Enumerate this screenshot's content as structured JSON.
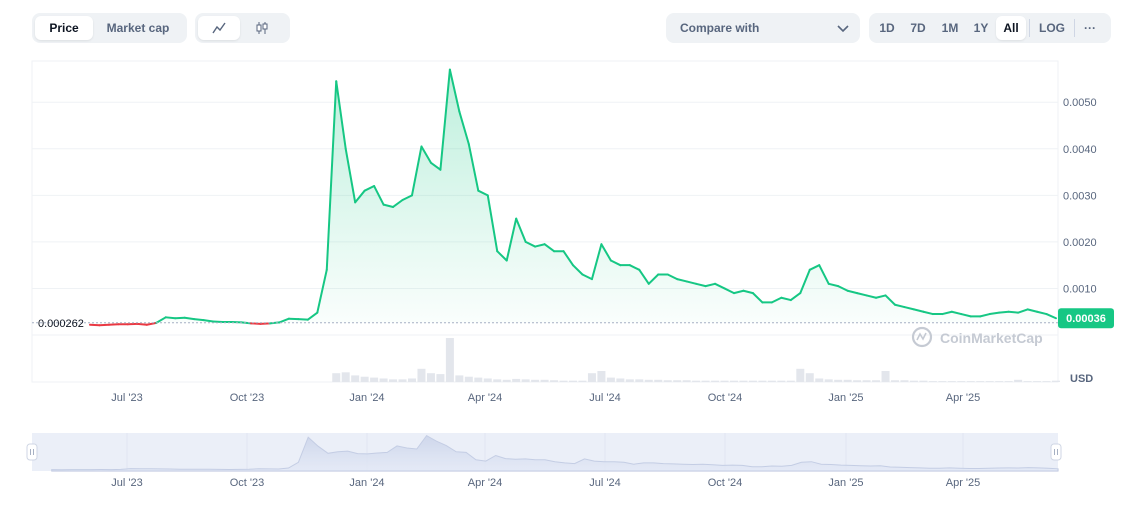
{
  "toolbar": {
    "price_label": "Price",
    "market_cap_label": "Market cap",
    "compare_label": "Compare with",
    "ranges": [
      "1D",
      "7D",
      "1M",
      "1Y",
      "All"
    ],
    "active_range": "All",
    "log_label": "LOG",
    "more_label": "···"
  },
  "watermark": "CoinMarketCap",
  "chart_data": {
    "type": "area",
    "currency_label": "USD",
    "y_ticks": [
      "0.0010",
      "0.0020",
      "0.0030",
      "0.0040",
      "0.0050"
    ],
    "ylim": [
      0,
      0.0058
    ],
    "x_ticks": [
      "Jul '23",
      "Oct '23",
      "Jan '24",
      "Apr '24",
      "Jul '24",
      "Oct '24",
      "Jan '25",
      "Apr '25"
    ],
    "baseline_value": 0.000262,
    "baseline_label": "0.000262",
    "current_price_label": "0.00036",
    "colors": {
      "up": "#16c784",
      "down": "#ea3943"
    },
    "series": [
      {
        "values": [
          0.00022,
          0.00021,
          0.00022,
          0.00023,
          0.00023,
          0.00024,
          0.00022,
          0.00026,
          0.00038,
          0.00036,
          0.00037,
          0.00034,
          0.00032,
          0.00029,
          0.00028,
          0.00028,
          0.00027,
          0.00025,
          0.00024,
          0.00025,
          0.00027,
          0.00035,
          0.00034,
          0.00033,
          0.00048,
          0.0014,
          0.00545,
          0.004,
          0.00285,
          0.0031,
          0.0032,
          0.0028,
          0.00275,
          0.0029,
          0.003,
          0.00405,
          0.0037,
          0.00355,
          0.0057,
          0.0048,
          0.0041,
          0.0031,
          0.003,
          0.0018,
          0.0016,
          0.0025,
          0.002,
          0.0019,
          0.00195,
          0.0018,
          0.0018,
          0.0015,
          0.0013,
          0.0012,
          0.00195,
          0.0016,
          0.0015,
          0.0015,
          0.0014,
          0.0011,
          0.0013,
          0.0013,
          0.0012,
          0.00115,
          0.0011,
          0.00105,
          0.0011,
          0.001,
          0.0009,
          0.00095,
          0.0009,
          0.0007,
          0.0007,
          0.0008,
          0.00075,
          0.0009,
          0.0014,
          0.0015,
          0.0011,
          0.00105,
          0.00095,
          0.0009,
          0.00085,
          0.0008,
          0.00085,
          0.00065,
          0.0006,
          0.00055,
          0.0005,
          0.00045,
          0.00045,
          0.0005,
          0.00045,
          0.0004,
          0.0004,
          0.00045,
          0.00048,
          0.0005,
          0.00048,
          0.00055,
          0.0005,
          0.00045,
          0.00036
        ],
        "volume": [
          0,
          0,
          0,
          0,
          0,
          0,
          0,
          0,
          0,
          0,
          0,
          0,
          0,
          0,
          0,
          0,
          0,
          0,
          0,
          0,
          0,
          0,
          0,
          0,
          0,
          0,
          0.2,
          0.22,
          0.15,
          0.12,
          0.1,
          0.08,
          0.06,
          0.06,
          0.08,
          0.3,
          0.2,
          0.18,
          1.0,
          0.15,
          0.12,
          0.1,
          0.08,
          0.06,
          0.05,
          0.07,
          0.06,
          0.05,
          0.05,
          0.04,
          0.03,
          0.03,
          0.03,
          0.2,
          0.25,
          0.1,
          0.08,
          0.06,
          0.06,
          0.05,
          0.05,
          0.04,
          0.04,
          0.04,
          0.03,
          0.03,
          0.03,
          0.03,
          0.03,
          0.03,
          0.03,
          0.03,
          0.03,
          0.03,
          0.03,
          0.3,
          0.2,
          0.08,
          0.06,
          0.05,
          0.05,
          0.04,
          0.04,
          0.04,
          0.25,
          0.04,
          0.04,
          0.03,
          0.03,
          0.02,
          0.02,
          0.02,
          0.02,
          0.02,
          0.02,
          0.02,
          0.02,
          0.02,
          0.05,
          0.02,
          0.02,
          0.02,
          0.03
        ]
      }
    ]
  }
}
